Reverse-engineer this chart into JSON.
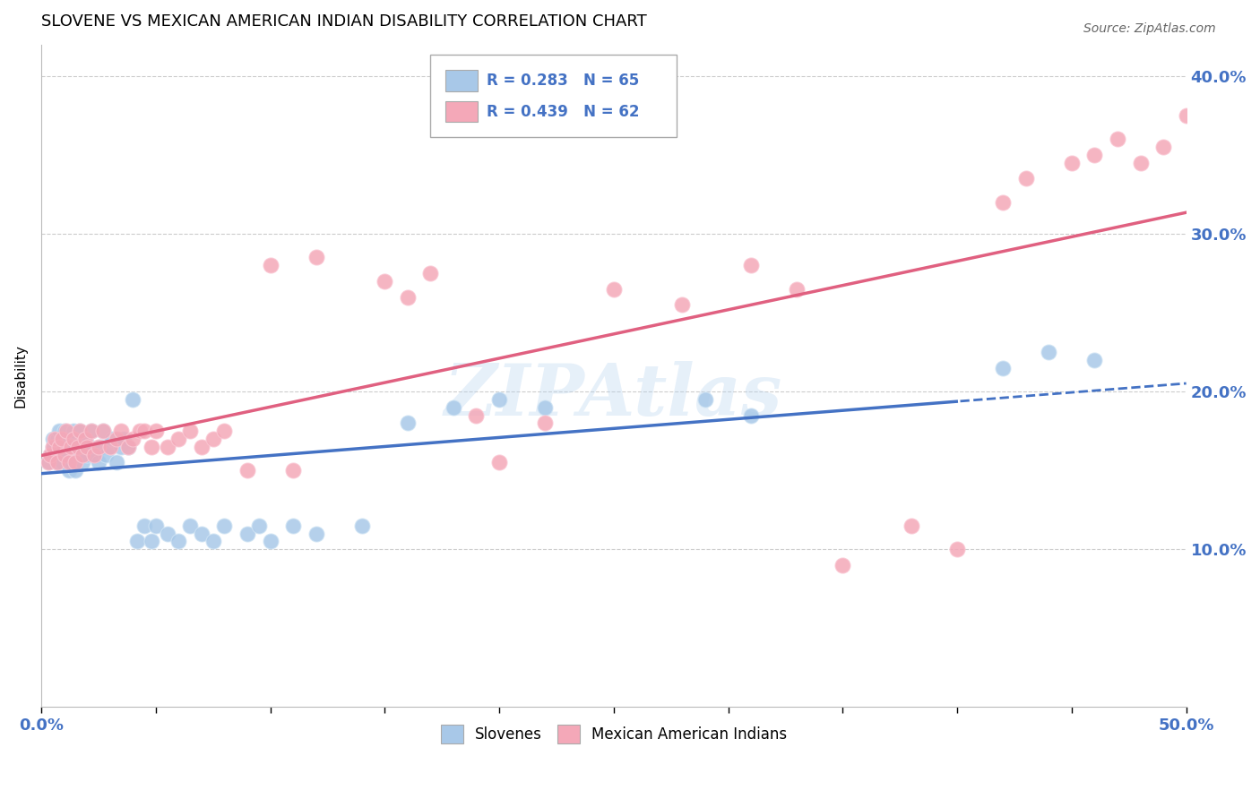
{
  "title": "SLOVENE VS MEXICAN AMERICAN INDIAN DISABILITY CORRELATION CHART",
  "source": "Source: ZipAtlas.com",
  "ylabel": "Disability",
  "xlim": [
    0.0,
    0.5
  ],
  "ylim": [
    0.0,
    0.42
  ],
  "yticks": [
    0.1,
    0.2,
    0.3,
    0.4
  ],
  "ytick_labels": [
    "10.0%",
    "20.0%",
    "30.0%",
    "40.0%"
  ],
  "xticks": [
    0.0,
    0.05,
    0.1,
    0.15,
    0.2,
    0.25,
    0.3,
    0.35,
    0.4,
    0.45,
    0.5
  ],
  "blue_R": 0.283,
  "blue_N": 65,
  "pink_R": 0.439,
  "pink_N": 62,
  "blue_color": "#a8c8e8",
  "pink_color": "#f4a8b8",
  "blue_line_color": "#4472c4",
  "pink_line_color": "#e06080",
  "legend_label_blue": "Slovenes",
  "legend_label_pink": "Mexican American Indians",
  "blue_x": [
    0.003,
    0.004,
    0.005,
    0.005,
    0.006,
    0.007,
    0.007,
    0.008,
    0.008,
    0.009,
    0.01,
    0.01,
    0.011,
    0.012,
    0.012,
    0.013,
    0.013,
    0.014,
    0.015,
    0.015,
    0.016,
    0.017,
    0.018,
    0.018,
    0.019,
    0.02,
    0.021,
    0.022,
    0.023,
    0.025,
    0.026,
    0.027,
    0.028,
    0.03,
    0.031,
    0.033,
    0.035,
    0.036,
    0.038,
    0.04,
    0.042,
    0.045,
    0.048,
    0.05,
    0.055,
    0.06,
    0.065,
    0.07,
    0.075,
    0.08,
    0.09,
    0.095,
    0.1,
    0.11,
    0.12,
    0.14,
    0.16,
    0.18,
    0.2,
    0.22,
    0.29,
    0.31,
    0.42,
    0.44,
    0.46
  ],
  "blue_y": [
    0.155,
    0.16,
    0.165,
    0.17,
    0.165,
    0.155,
    0.17,
    0.16,
    0.175,
    0.155,
    0.165,
    0.175,
    0.16,
    0.15,
    0.17,
    0.155,
    0.165,
    0.175,
    0.15,
    0.165,
    0.16,
    0.175,
    0.155,
    0.165,
    0.17,
    0.16,
    0.165,
    0.175,
    0.16,
    0.155,
    0.165,
    0.175,
    0.16,
    0.165,
    0.17,
    0.155,
    0.165,
    0.17,
    0.165,
    0.195,
    0.105,
    0.115,
    0.105,
    0.115,
    0.11,
    0.105,
    0.115,
    0.11,
    0.105,
    0.115,
    0.11,
    0.115,
    0.105,
    0.115,
    0.11,
    0.115,
    0.18,
    0.19,
    0.195,
    0.19,
    0.195,
    0.185,
    0.215,
    0.225,
    0.22
  ],
  "pink_x": [
    0.003,
    0.004,
    0.005,
    0.006,
    0.007,
    0.008,
    0.009,
    0.01,
    0.011,
    0.012,
    0.013,
    0.014,
    0.015,
    0.016,
    0.017,
    0.018,
    0.019,
    0.02,
    0.022,
    0.023,
    0.025,
    0.027,
    0.03,
    0.033,
    0.035,
    0.038,
    0.04,
    0.043,
    0.045,
    0.048,
    0.05,
    0.055,
    0.06,
    0.065,
    0.07,
    0.075,
    0.08,
    0.09,
    0.1,
    0.11,
    0.12,
    0.15,
    0.16,
    0.17,
    0.19,
    0.2,
    0.22,
    0.25,
    0.28,
    0.31,
    0.33,
    0.35,
    0.38,
    0.4,
    0.42,
    0.43,
    0.45,
    0.46,
    0.47,
    0.48,
    0.49,
    0.5
  ],
  "pink_y": [
    0.155,
    0.16,
    0.165,
    0.17,
    0.155,
    0.165,
    0.17,
    0.16,
    0.175,
    0.155,
    0.165,
    0.17,
    0.155,
    0.165,
    0.175,
    0.16,
    0.17,
    0.165,
    0.175,
    0.16,
    0.165,
    0.175,
    0.165,
    0.17,
    0.175,
    0.165,
    0.17,
    0.175,
    0.175,
    0.165,
    0.175,
    0.165,
    0.17,
    0.175,
    0.165,
    0.17,
    0.175,
    0.15,
    0.28,
    0.15,
    0.285,
    0.27,
    0.26,
    0.275,
    0.185,
    0.155,
    0.18,
    0.265,
    0.255,
    0.28,
    0.265,
    0.09,
    0.115,
    0.1,
    0.32,
    0.335,
    0.345,
    0.35,
    0.36,
    0.345,
    0.355,
    0.375
  ],
  "background_color": "#ffffff",
  "grid_color": "#cccccc",
  "title_fontsize": 13,
  "axis_label_color": "#4472c4",
  "watermark_text": "ZIPAtlas",
  "watermark_color": "#b8d4f0",
  "watermark_alpha": 0.35
}
